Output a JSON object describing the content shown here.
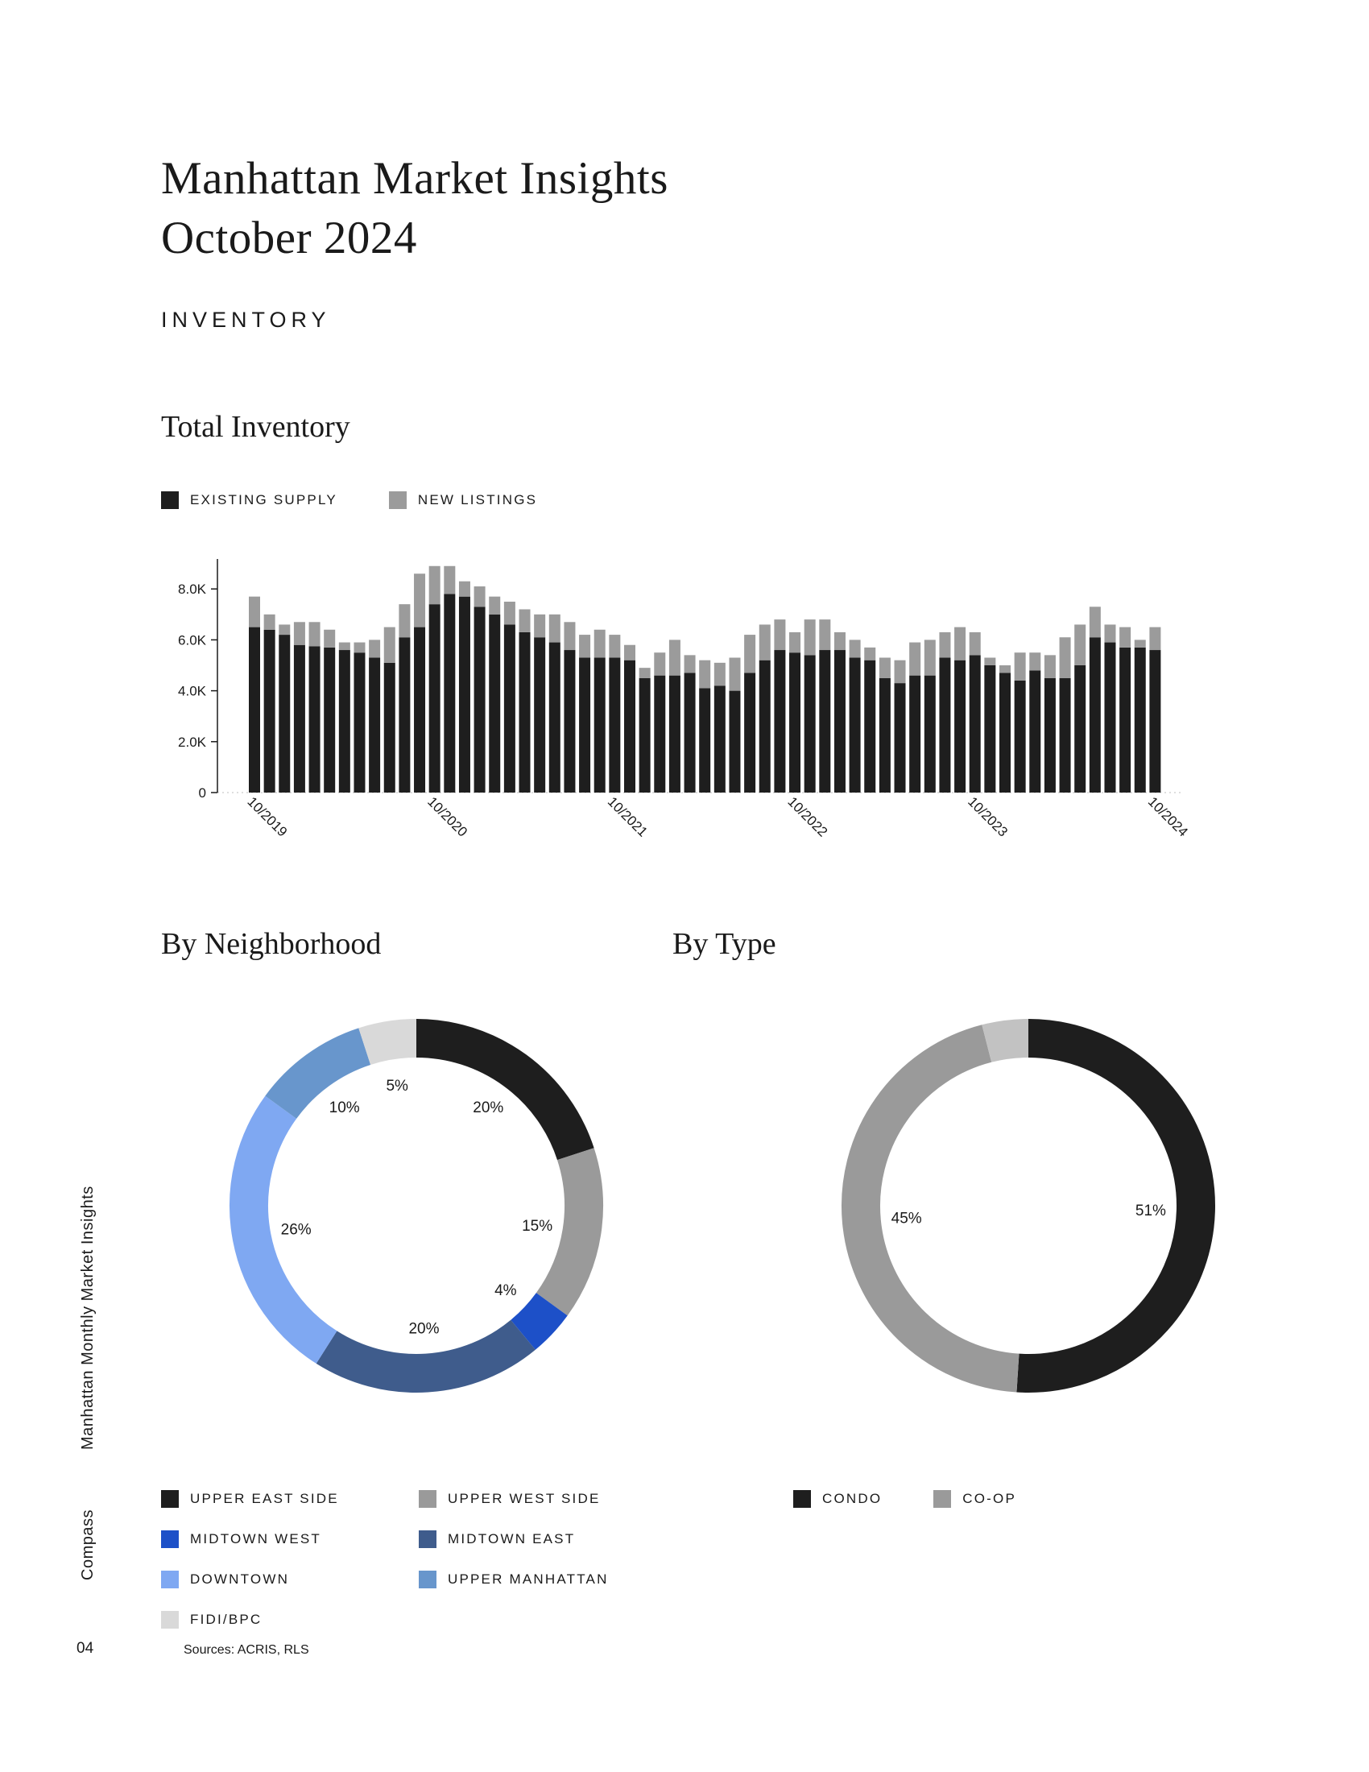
{
  "page": {
    "title_line1": "Manhattan Market Insights",
    "title_line2": "October 2024",
    "section": "INVENTORY",
    "sidebar_text": "Manhattan Monthly Market Insights",
    "brand": "Compass",
    "page_number": "04",
    "sources": "Sources: ACRIS, RLS"
  },
  "chart_data": [
    {
      "type": "bar",
      "title": "Total Inventory",
      "stacked": true,
      "xlabel": "",
      "ylabel": "",
      "ylim": [
        0,
        8000
      ],
      "yticks": [
        "0",
        "2.0K",
        "4.0K",
        "6.0K",
        "8.0K"
      ],
      "legend": [
        {
          "label": "EXISTING SUPPLY",
          "color": "#1e1e1e"
        },
        {
          "label": "NEW LISTINGS",
          "color": "#9b9b9b"
        }
      ],
      "x": [
        "10/2019",
        "11/2019",
        "12/2019",
        "01/2020",
        "02/2020",
        "03/2020",
        "04/2020",
        "05/2020",
        "06/2020",
        "07/2020",
        "08/2020",
        "09/2020",
        "10/2020",
        "11/2020",
        "12/2020",
        "01/2021",
        "02/2021",
        "03/2021",
        "04/2021",
        "05/2021",
        "06/2021",
        "07/2021",
        "08/2021",
        "09/2021",
        "10/2021",
        "11/2021",
        "12/2021",
        "01/2022",
        "02/2022",
        "03/2022",
        "04/2022",
        "05/2022",
        "06/2022",
        "07/2022",
        "08/2022",
        "09/2022",
        "10/2022",
        "11/2022",
        "12/2022",
        "01/2023",
        "02/2023",
        "03/2023",
        "04/2023",
        "05/2023",
        "06/2023",
        "07/2023",
        "08/2023",
        "09/2023",
        "10/2023",
        "11/2023",
        "12/2023",
        "01/2024",
        "02/2024",
        "03/2024",
        "04/2024",
        "05/2024",
        "06/2024",
        "07/2024",
        "08/2024",
        "09/2024",
        "10/2024"
      ],
      "x_tick_labels": [
        "10/2019",
        "10/2020",
        "10/2021",
        "10/2022",
        "10/2023",
        "10/2024"
      ],
      "series": [
        {
          "name": "EXISTING SUPPLY",
          "values": [
            6500,
            6400,
            6200,
            5800,
            5750,
            5700,
            5600,
            5500,
            5300,
            5100,
            6100,
            6500,
            7400,
            7800,
            7700,
            7300,
            7000,
            6600,
            6300,
            6100,
            5900,
            5600,
            5300,
            5300,
            5300,
            5200,
            4500,
            4600,
            4600,
            4700,
            4100,
            4200,
            4000,
            4700,
            5200,
            5600,
            5500,
            5400,
            5600,
            5600,
            5300,
            5200,
            4500,
            4300,
            4600,
            4600,
            5300,
            5200,
            5400,
            5000,
            4700,
            4400,
            4800,
            4500,
            4500,
            5000,
            6100,
            5900,
            5700,
            5700,
            5600
          ]
        },
        {
          "name": "NEW LISTINGS",
          "values": [
            1200,
            600,
            400,
            900,
            950,
            700,
            300,
            400,
            700,
            1400,
            1300,
            2100,
            1500,
            1100,
            600,
            800,
            700,
            900,
            900,
            900,
            1100,
            1100,
            900,
            1100,
            900,
            600,
            400,
            900,
            1400,
            700,
            1100,
            900,
            1300,
            1500,
            1400,
            1200,
            800,
            1400,
            1200,
            700,
            700,
            500,
            800,
            900,
            1300,
            1400,
            1000,
            1300,
            900,
            300,
            300,
            1100,
            700,
            900,
            1600,
            1600,
            1200,
            700,
            800,
            300,
            900
          ]
        }
      ]
    },
    {
      "type": "pie",
      "title": "By Neighborhood",
      "donut": true,
      "slices": [
        {
          "label": "UPPER EAST SIDE",
          "value": 20,
          "pct_label": "20%",
          "color": "#1e1e1e"
        },
        {
          "label": "UPPER WEST SIDE",
          "value": 15,
          "pct_label": "15%",
          "color": "#9a9a9a"
        },
        {
          "label": "MIDTOWN WEST",
          "value": 4,
          "pct_label": "4%",
          "color": "#1d50c8"
        },
        {
          "label": "MIDTOWN EAST",
          "value": 20,
          "pct_label": "20%",
          "color": "#3f5c8c"
        },
        {
          "label": "DOWNTOWN",
          "value": 26,
          "pct_label": "26%",
          "color": "#7fa8f2"
        },
        {
          "label": "UPPER MANHATTAN",
          "value": 10,
          "pct_label": "10%",
          "color": "#6896cc"
        },
        {
          "label": "FIDI/BPC",
          "value": 5,
          "pct_label": "5%",
          "color": "#d9d9d9"
        }
      ]
    },
    {
      "type": "pie",
      "title": "By Type",
      "donut": true,
      "slices": [
        {
          "label": "CONDO",
          "value": 51,
          "pct_label": "51%",
          "color": "#1e1e1e"
        },
        {
          "label": "CO-OP",
          "value": 45,
          "pct_label": "45%",
          "color": "#9a9a9a"
        },
        {
          "label": "",
          "value": 4,
          "pct_label": "",
          "color": "#c2c2c2"
        }
      ]
    }
  ]
}
